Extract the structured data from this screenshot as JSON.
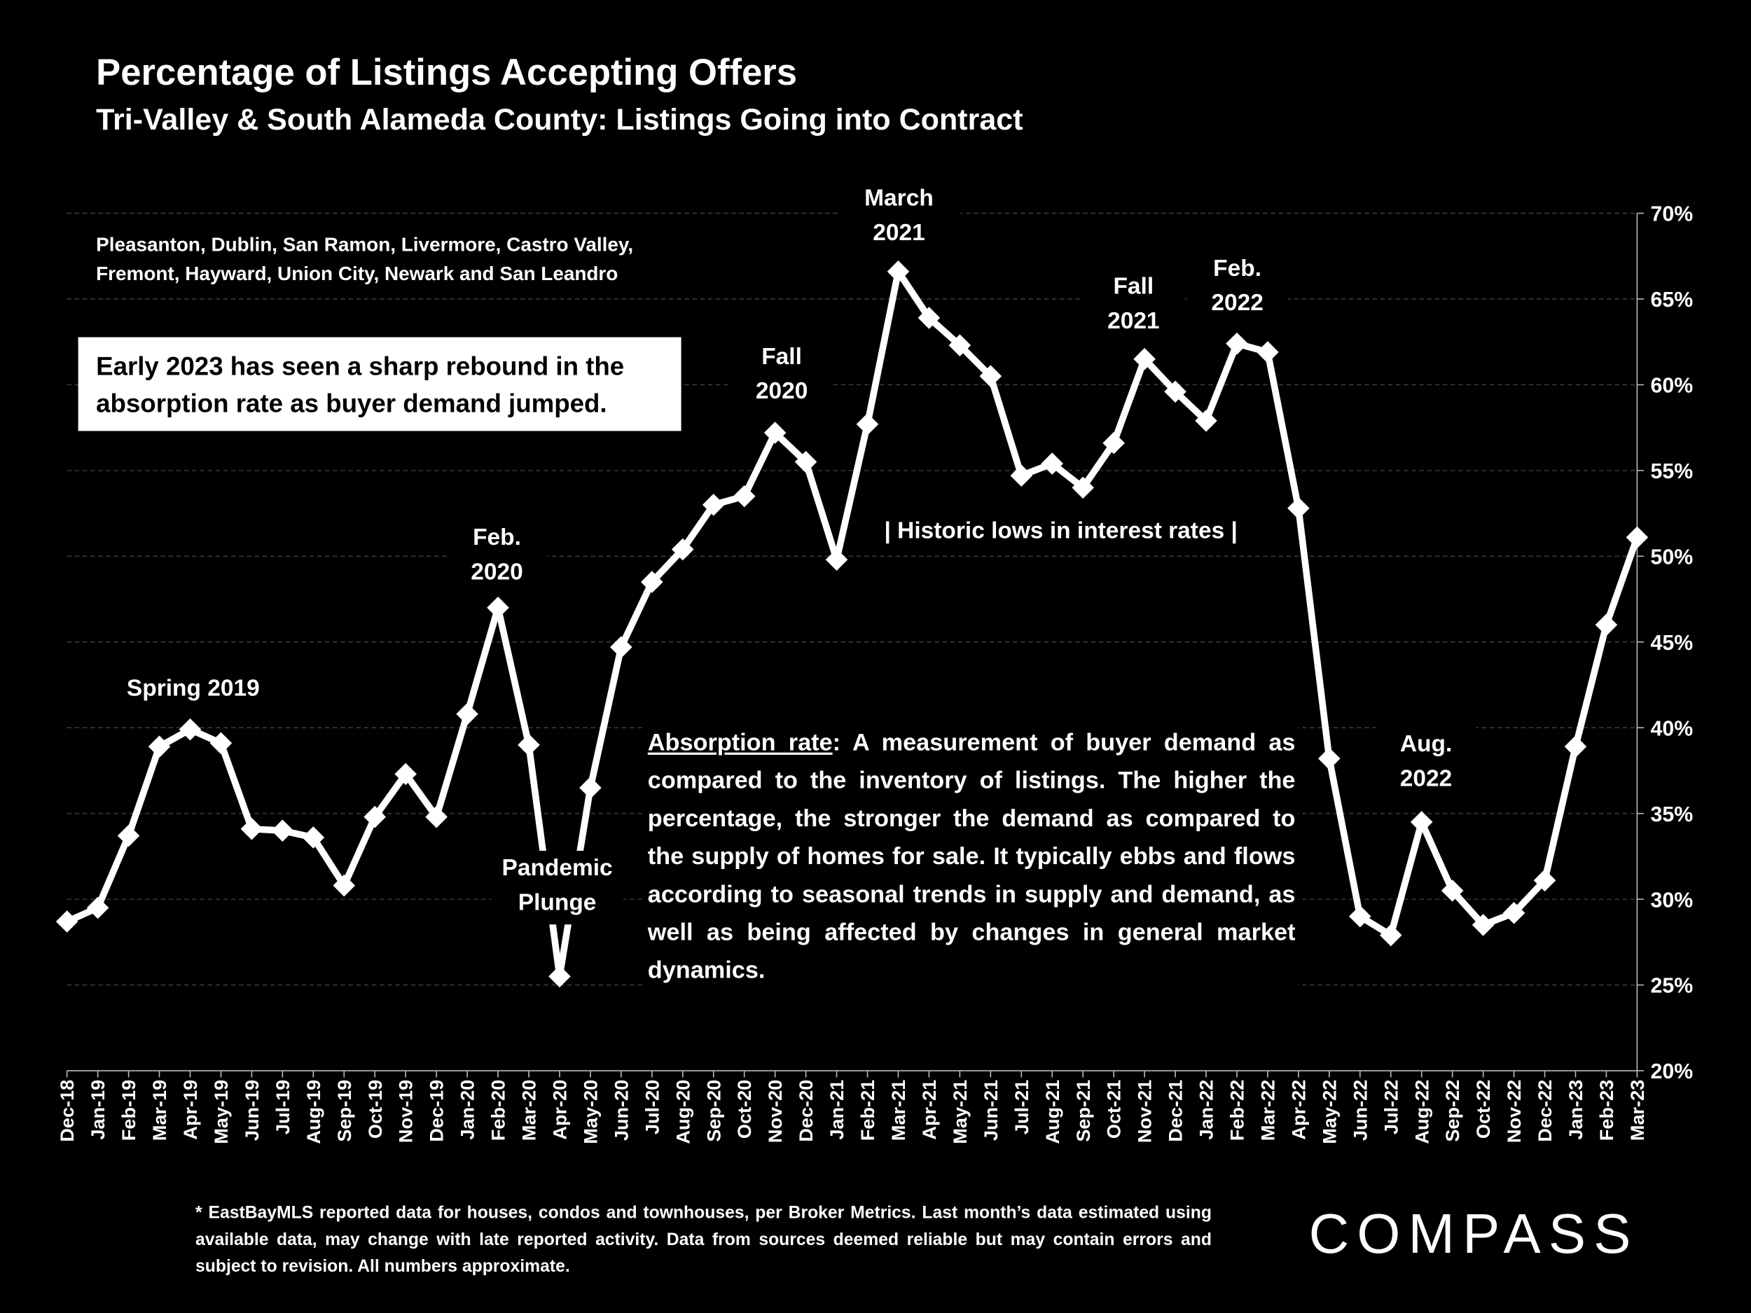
{
  "header": {
    "title": "Percentage of Listings Accepting Offers",
    "subtitle": "Tri-Valley & South Alameda County: Listings Going into Contract"
  },
  "areas": {
    "line1": "Pleasanton, Dublin, San Ramon, Livermore, Castro Valley,",
    "line2": "Fremont, Hayward, Union City, Newark and San Leandro"
  },
  "callout": {
    "line1": "Early 2023 has seen a sharp rebound in the",
    "line2": "absorption rate as buyer demand jumped."
  },
  "annotations": {
    "spring2019": "Spring 2019",
    "feb2020_1": "Feb.",
    "feb2020_2": "2020",
    "pandemic1": "Pandemic",
    "pandemic2": "Plunge",
    "fall2020_1": "Fall",
    "fall2020_2": "2020",
    "march2021_1": "March",
    "march2021_2": "2021",
    "fall2021_1": "Fall",
    "fall2021_2": "2021",
    "feb2022_1": "Feb.",
    "feb2022_2": "2022",
    "aug2022_1": "Aug.",
    "aug2022_2": "2022",
    "historic": "| Historic lows in interest rates |"
  },
  "absorption": {
    "term": "Absorption rate",
    "text": ":  A measurement of buyer demand as compared to the inventory of listings. The higher the percentage, the stronger the demand as compared to the supply of homes for sale. It typically ebbs and flows according to seasonal trends in supply and demand, as well as being affected by changes in general market dynamics."
  },
  "footnote": "* EastBayMLS reported data for houses, condos and townhouses, per Broker Metrics. Last month’s data estimated using available data, may change with late reported activity. Data from sources deemed reliable but may contain errors and subject to revision. All numbers approximate.",
  "logo": "COMPASS",
  "chart_data": {
    "type": "line",
    "title": "Percentage of Listings Accepting Offers",
    "ylabel": "",
    "xlabel": "",
    "ylim": [
      20,
      70
    ],
    "yticks": [
      "20%",
      "25%",
      "30%",
      "35%",
      "40%",
      "45%",
      "50%",
      "55%",
      "60%",
      "65%",
      "70%"
    ],
    "y_axis_position": "right",
    "grid": true,
    "line_color": "#ffffff",
    "categories": [
      "Dec-18",
      "Jan-19",
      "Feb-19",
      "Mar-19",
      "Apr-19",
      "May-19",
      "Jun-19",
      "Jul-19",
      "Aug-19",
      "Sep-19",
      "Oct-19",
      "Nov-19",
      "Dec-19",
      "Jan-20",
      "Feb-20",
      "Mar-20",
      "Apr-20",
      "May-20",
      "Jun-20",
      "Jul-20",
      "Aug-20",
      "Sep-20",
      "Oct-20",
      "Nov-20",
      "Dec-20",
      "Jan-21",
      "Feb-21",
      "Mar-21",
      "Apr-21",
      "May-21",
      "Jun-21",
      "Jul-21",
      "Aug-21",
      "Sep-21",
      "Oct-21",
      "Nov-21",
      "Dec-21",
      "Jan-22",
      "Feb-22",
      "Mar-22",
      "Apr-22",
      "May-22",
      "Jun-22",
      "Jul-22",
      "Aug-22",
      "Sep-22",
      "Oct-22",
      "Nov-22",
      "Dec-22",
      "Jan-23",
      "Feb-23",
      "Mar-23"
    ],
    "values": [
      28.7,
      29.5,
      33.7,
      38.9,
      39.9,
      39.1,
      34.1,
      34.0,
      33.6,
      30.8,
      34.8,
      37.3,
      34.8,
      40.8,
      47.0,
      39.0,
      25.5,
      36.5,
      44.7,
      48.5,
      50.4,
      53.0,
      53.5,
      57.2,
      55.5,
      49.8,
      57.7,
      66.6,
      63.9,
      62.3,
      60.5,
      54.7,
      55.4,
      54.0,
      56.6,
      61.5,
      59.6,
      57.9,
      62.4,
      61.9,
      52.8,
      38.2,
      29.0,
      27.9,
      34.5,
      30.5,
      28.5,
      29.2,
      31.1,
      38.9,
      46.0,
      51.1
    ]
  }
}
